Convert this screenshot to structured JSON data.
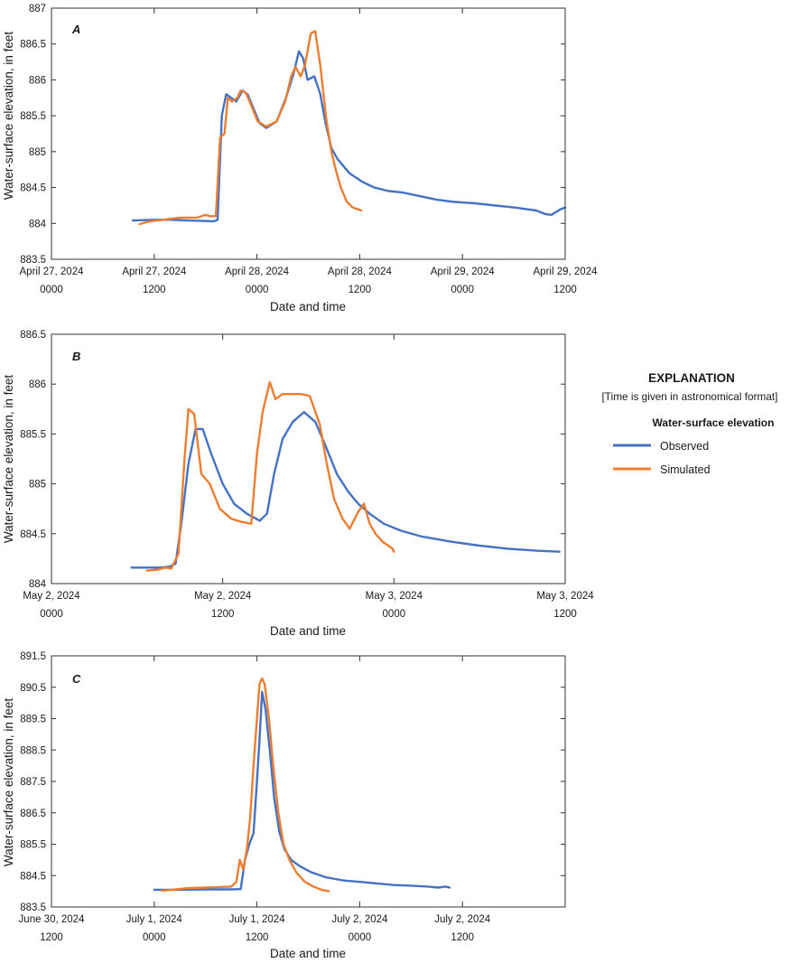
{
  "colors": {
    "observed": "#4472C4",
    "simulated": "#ED7D31",
    "axis": "#333333"
  },
  "legend": {
    "title": "EXPLANATION",
    "note": "[Time is given in astronomical format]",
    "subtitle": "Water-surface elevation",
    "entries": [
      {
        "name": "Observed",
        "color": "#4472C4"
      },
      {
        "name": "Simulated",
        "color": "#ED7D31"
      }
    ]
  },
  "chart_data": [
    {
      "type": "line",
      "panel": "A",
      "xlabel": "Date and time",
      "ylabel": "Water-surface elevation, in feet",
      "xunit": "hours since April 27, 2024 0000",
      "xlim": [
        0,
        60
      ],
      "ylim": [
        883.5,
        887
      ],
      "yticks": [
        883.5,
        884,
        884.5,
        885,
        885.5,
        886,
        886.5,
        887
      ],
      "xticks": [
        {
          "x": 0,
          "date": "April 27, 2024",
          "time": "0000"
        },
        {
          "x": 12,
          "date": "April 27, 2024",
          "time": "1200"
        },
        {
          "x": 24,
          "date": "April 28, 2024",
          "time": "0000"
        },
        {
          "x": 36,
          "date": "April 28, 2024",
          "time": "1200"
        },
        {
          "x": 48,
          "date": "April 29, 2024",
          "time": "0000"
        },
        {
          "x": 60,
          "date": "April 29, 2024",
          "time": "1200"
        }
      ],
      "series": [
        {
          "name": "Observed",
          "color": "#4472C4",
          "x": [
            9.5,
            12,
            14,
            16,
            19,
            19.4,
            19.9,
            20.4,
            21,
            21.6,
            22.3,
            22.9,
            23.6,
            24.3,
            25.1,
            26.3,
            27.4,
            28.3,
            28.9,
            29.4,
            29.9,
            30.7,
            31.4,
            32,
            32.7,
            33.4,
            34.8,
            36.3,
            37.7,
            39.4,
            41,
            43,
            45,
            47,
            49.4,
            51.8,
            54.2,
            56.6,
            57.7,
            58.4,
            59.5,
            60
          ],
          "y": [
            884.04,
            884.05,
            884.05,
            884.04,
            884.03,
            884.05,
            885.5,
            885.8,
            885.75,
            885.7,
            885.85,
            885.8,
            885.6,
            885.4,
            885.33,
            885.42,
            885.75,
            886.1,
            886.4,
            886.3,
            886.0,
            886.05,
            885.8,
            885.4,
            885.05,
            884.9,
            884.7,
            884.58,
            884.5,
            884.45,
            884.43,
            884.38,
            884.33,
            884.3,
            884.28,
            884.25,
            884.22,
            884.18,
            884.13,
            884.12,
            884.2,
            884.22
          ]
        },
        {
          "name": "Simulated",
          "color": "#ED7D31",
          "x": [
            10.3,
            11.5,
            13,
            15,
            17,
            18,
            18.5,
            19.2,
            19.7,
            20.2,
            20.6,
            21.1,
            21.7,
            22.1,
            22.7,
            23.3,
            24.1,
            25.1,
            26.3,
            27.3,
            28,
            28.5,
            29.1,
            29.6,
            30.3,
            30.8,
            31.4,
            32.1,
            32.7,
            33.2,
            33.8,
            34.5,
            35.2,
            36.2
          ],
          "y": [
            883.99,
            884.03,
            884.05,
            884.08,
            884.08,
            884.12,
            884.1,
            884.1,
            885.2,
            885.25,
            885.75,
            885.7,
            885.75,
            885.85,
            885.82,
            885.65,
            885.42,
            885.35,
            885.42,
            885.7,
            886.05,
            886.18,
            886.05,
            886.2,
            886.65,
            886.68,
            886.2,
            885.45,
            885.0,
            884.75,
            884.5,
            884.3,
            884.22,
            884.18
          ]
        }
      ]
    },
    {
      "type": "line",
      "panel": "B",
      "xlabel": "Date and time",
      "ylabel": "Water-surface elevation, in feet",
      "xunit": "hours since May 2, 2024 0000",
      "xlim": [
        0,
        36
      ],
      "ylim": [
        884,
        886.5
      ],
      "yticks": [
        884,
        884.5,
        885,
        885.5,
        886,
        886.5
      ],
      "xticks": [
        {
          "x": 0,
          "date": "May 2, 2024",
          "time": "0000"
        },
        {
          "x": 12,
          "date": "May 2, 2024",
          "time": "1200"
        },
        {
          "x": 24,
          "date": "May 3, 2024",
          "time": "0000"
        },
        {
          "x": 36,
          "date": "May 3, 2024",
          "time": "1200"
        }
      ],
      "series": [
        {
          "name": "Observed",
          "color": "#4472C4",
          "x": [
            5.6,
            6.8,
            7.6,
            8.3,
            8.7,
            9.1,
            9.6,
            10.1,
            10.6,
            11.2,
            12,
            12.8,
            13.7,
            14.6,
            15.1,
            15.6,
            16.2,
            16.9,
            17.7,
            18.5,
            19.3,
            20,
            20.8,
            21.5,
            22.3,
            23.3,
            24.5,
            26,
            28,
            30,
            32,
            34,
            35.6
          ],
          "y": [
            884.16,
            884.16,
            884.16,
            884.17,
            884.2,
            884.6,
            885.2,
            885.55,
            885.55,
            885.3,
            885.0,
            884.8,
            884.7,
            884.63,
            884.7,
            885.1,
            885.45,
            885.62,
            885.72,
            885.62,
            885.35,
            885.1,
            884.92,
            884.8,
            884.7,
            884.6,
            884.53,
            884.47,
            884.42,
            884.38,
            884.35,
            884.33,
            884.32
          ]
        },
        {
          "name": "Simulated",
          "color": "#ED7D31",
          "x": [
            6.7,
            7.5,
            8,
            8.4,
            8.9,
            9.3,
            9.6,
            10,
            10.5,
            11.1,
            11.8,
            12.6,
            13.3,
            14,
            14.4,
            14.8,
            15.3,
            15.7,
            16.2,
            16.8,
            17.5,
            18.1,
            18.8,
            19.3,
            19.8,
            20.4,
            20.9,
            21.5,
            21.9,
            22.3,
            22.7,
            23.2,
            23.9,
            24
          ],
          "y": [
            884.13,
            884.14,
            884.16,
            884.15,
            884.3,
            885.2,
            885.75,
            885.7,
            885.1,
            885.0,
            884.75,
            884.65,
            884.62,
            884.6,
            885.3,
            885.72,
            886.02,
            885.85,
            885.9,
            885.9,
            885.9,
            885.88,
            885.6,
            885.2,
            884.85,
            884.65,
            884.55,
            884.72,
            884.8,
            884.6,
            884.5,
            884.42,
            884.35,
            884.32
          ]
        }
      ]
    },
    {
      "type": "line",
      "panel": "C",
      "xlabel": "Date and time",
      "ylabel": "Water-surface elevation, in feet",
      "xunit": "hours since June 30, 2024 1200",
      "xlim": [
        0,
        60
      ],
      "ylim": [
        883.5,
        891.5
      ],
      "yticks": [
        883.5,
        884.5,
        885.5,
        886.5,
        887.5,
        888.5,
        889.5,
        890.5,
        891.5
      ],
      "xticks": [
        {
          "x": 0,
          "date": "June 30, 2024",
          "time": "1200"
        },
        {
          "x": 12,
          "date": "July 1, 2024",
          "time": "0000"
        },
        {
          "x": 24,
          "date": "July 1, 2024",
          "time": "1200"
        },
        {
          "x": 36,
          "date": "July 2, 2024",
          "time": "0000"
        },
        {
          "x": 48,
          "date": "July 2, 2024",
          "time": "1200"
        }
      ],
      "series": [
        {
          "name": "Observed",
          "color": "#4472C4",
          "x": [
            12,
            15,
            18,
            21,
            22.1,
            22.6,
            23.1,
            23.6,
            24,
            24.3,
            24.6,
            25,
            25.5,
            26,
            26.6,
            27.2,
            28,
            29,
            30.4,
            32,
            34,
            36,
            38,
            40,
            42,
            44,
            45.2,
            46,
            46.5
          ],
          "y": [
            884.05,
            884.05,
            884.06,
            884.06,
            884.07,
            885.0,
            885.5,
            885.85,
            887.5,
            888.8,
            890.35,
            889.8,
            888.5,
            887.0,
            885.9,
            885.35,
            885.0,
            884.8,
            884.6,
            884.45,
            884.35,
            884.3,
            884.25,
            884.2,
            884.18,
            884.15,
            884.12,
            884.15,
            884.12
          ]
        },
        {
          "name": "Simulated",
          "color": "#ED7D31",
          "x": [
            12.9,
            14,
            16,
            18,
            20,
            21,
            21.6,
            22,
            22.4,
            22.8,
            23.2,
            23.6,
            24,
            24.3,
            24.6,
            24.9,
            25.4,
            25.9,
            26.5,
            27.1,
            27.8,
            28.6,
            29.6,
            30.6,
            31.5,
            32.4
          ],
          "y": [
            884.02,
            884.05,
            884.1,
            884.12,
            884.14,
            884.15,
            884.3,
            885.0,
            884.7,
            885.3,
            886.3,
            888.0,
            889.5,
            890.6,
            890.78,
            890.6,
            889.5,
            888.0,
            886.5,
            885.5,
            885.0,
            884.6,
            884.3,
            884.15,
            884.05,
            884.0
          ]
        }
      ]
    }
  ]
}
